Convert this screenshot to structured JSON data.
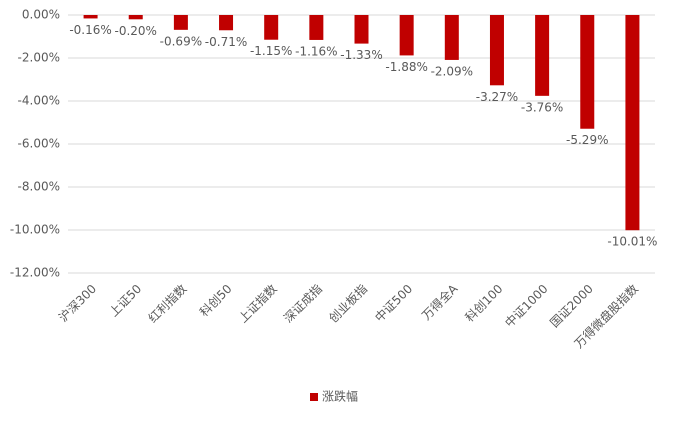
{
  "chart_data": {
    "type": "bar",
    "categories": [
      "沪深300",
      "上证50",
      "红利指数",
      "科创50",
      "上证指数",
      "深证成指",
      "创业板指",
      "中证500",
      "万得全A",
      "科创100",
      "中证1000",
      "国证2000",
      "万得微盘股指数"
    ],
    "series": [
      {
        "name": "涨跌幅",
        "color": "#c00000",
        "values": [
          -0.16,
          -0.2,
          -0.69,
          -0.71,
          -1.15,
          -1.16,
          -1.33,
          -1.88,
          -2.09,
          -3.27,
          -3.76,
          -5.29,
          -10.01
        ],
        "value_labels": [
          "-0.16%",
          "-0.20%",
          "-0.69%",
          "-0.71%",
          "-1.15%",
          "-1.16%",
          "-1.33%",
          "-1.88%",
          "-2.09%",
          "-3.27%",
          "-3.76%",
          "-5.29%",
          "-10.01%"
        ]
      }
    ],
    "ylim": [
      -12,
      0
    ],
    "yticks": [
      {
        "value": 0,
        "label": "0.00%"
      },
      {
        "value": -2,
        "label": "-2.00%"
      },
      {
        "value": -4,
        "label": "-4.00%"
      },
      {
        "value": -6,
        "label": "-6.00%"
      },
      {
        "value": -8,
        "label": "-8.00%"
      },
      {
        "value": -10,
        "label": "-10.00%"
      },
      {
        "value": -12,
        "label": "-12.00%"
      }
    ],
    "grid": true,
    "legend": "bottom"
  }
}
